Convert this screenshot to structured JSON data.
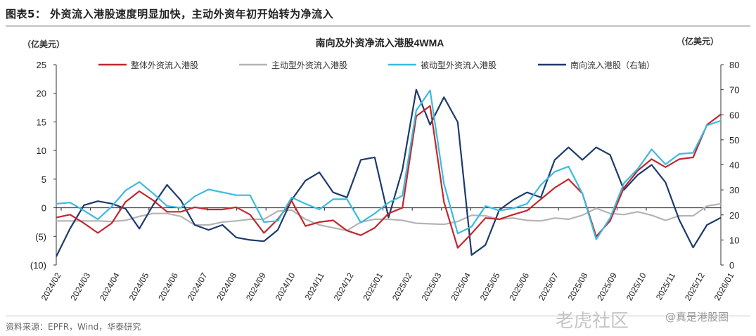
{
  "figure_title": "图表5：  外资流入港股速度明显加快，主动外资年初开始转为净流入",
  "source": "资料来源：EPFR，Wind，华泰研究",
  "watermarks": [
    "老虎社区",
    "@真是港股圈"
  ],
  "chart_data": {
    "type": "line",
    "title": "南向及外资净流入港股4WMA",
    "ylabel": "（亿美元）",
    "ylabel_right": "（亿美元）",
    "ylim": [
      -10,
      25
    ],
    "ylim_right": [
      0,
      80
    ],
    "yticks": [
      "25",
      "20",
      "15",
      "10",
      "5",
      "0",
      "(5)",
      "(10)"
    ],
    "yticks_right": [
      "80",
      "70",
      "60",
      "50",
      "40",
      "30",
      "20",
      "10",
      "0"
    ],
    "x_tick_labels": [
      "2024/02",
      "2024/03",
      "2024/04",
      "2024/05",
      "2024/06",
      "2024/07",
      "2024/08",
      "2024/09",
      "2024/10",
      "2024/11",
      "2024/12",
      "2025/01",
      "2025/02",
      "2025/03",
      "2025/04",
      "2025/05",
      "2025/06",
      "2025/07",
      "2025/08",
      "2025/09",
      "2025/10",
      "2025/11",
      "2025/12",
      "2026/01"
    ],
    "legend_position": "top",
    "series": [
      {
        "name": "整体外资流入港股",
        "axis": "left",
        "color": "#c0282d",
        "values": [
          -1.7,
          -1.2,
          -2.7,
          -4.4,
          -2.7,
          1.0,
          2.9,
          1.3,
          -0.7,
          -0.7,
          0.1,
          -0.3,
          -0.3,
          0.1,
          -1.2,
          -4.4,
          -2.0,
          1.2,
          -3.2,
          -2.5,
          -2.2,
          -4.0,
          -4.8,
          -3.5,
          -1.0,
          0.0,
          16.0,
          17.8,
          1.0,
          -7.0,
          -4.5,
          -1.8,
          -2.0,
          -1.2,
          -0.5,
          1.5,
          3.5,
          5.0,
          2.5,
          -5.0,
          -2.3,
          3.5,
          6.5,
          8.5,
          7.1,
          8.5,
          8.8,
          14.5,
          16.3
        ]
      },
      {
        "name": "主动型外资流入港股",
        "axis": "left",
        "color": "#b4b4b4",
        "values": [
          -2.3,
          -2.3,
          -2.3,
          -2.3,
          -2.4,
          -2.2,
          -1.5,
          -1.0,
          -1.0,
          -1.5,
          -3.0,
          -3.0,
          -2.5,
          -2.3,
          -2.0,
          -2.0,
          -0.6,
          -0.4,
          -2.0,
          -3.0,
          -3.5,
          -4.0,
          -2.5,
          -2.0,
          -2.0,
          -2.2,
          -2.7,
          -2.8,
          -2.9,
          -2.4,
          -1.3,
          -1.4,
          -2.0,
          -1.8,
          -2.2,
          -2.3,
          -1.8,
          -2.0,
          -1.3,
          -0.1,
          -1.0,
          -1.2,
          -0.7,
          -1.3,
          -2.2,
          -1.4,
          -1.4,
          0.3,
          0.7
        ]
      },
      {
        "name": "被动型外资流入港股",
        "axis": "left",
        "color": "#3bbbe0",
        "values": [
          0.7,
          0.9,
          -0.5,
          -2.0,
          0.2,
          3.0,
          4.5,
          2.5,
          0.3,
          0.0,
          2.0,
          3.2,
          2.7,
          2.2,
          2.2,
          -2.5,
          -2.3,
          1.8,
          0.7,
          -0.3,
          1.5,
          1.5,
          -2.6,
          -1.0,
          0.9,
          2.1,
          17.0,
          20.5,
          4.2,
          -4.5,
          -3.3,
          0.3,
          -0.5,
          -0.1,
          0.7,
          4.0,
          6.3,
          7.2,
          2.5,
          -5.5,
          -1.8,
          4.3,
          6.8,
          10.2,
          7.6,
          9.4,
          9.6,
          14.4,
          15.2
        ]
      },
      {
        "name": "南向流入港股（右轴）",
        "axis": "right",
        "color": "#1d3a6b",
        "values": [
          3.4,
          14.6,
          23.9,
          25.5,
          24.5,
          22.5,
          14.5,
          24.0,
          32.0,
          25.8,
          16.0,
          14.0,
          16.0,
          11.0,
          10.0,
          9.5,
          14.0,
          26.0,
          33.7,
          37.0,
          29.0,
          27.0,
          42.0,
          43.0,
          19.0,
          38.0,
          70.0,
          56.0,
          67.0,
          57.0,
          4.0,
          8.0,
          22.0,
          26.0,
          29.0,
          27.0,
          42.0,
          47.0,
          42.0,
          47.0,
          44.0,
          30.0,
          36.0,
          40.0,
          33.0,
          18.0,
          7.0,
          16.0,
          18.9
        ]
      }
    ]
  }
}
